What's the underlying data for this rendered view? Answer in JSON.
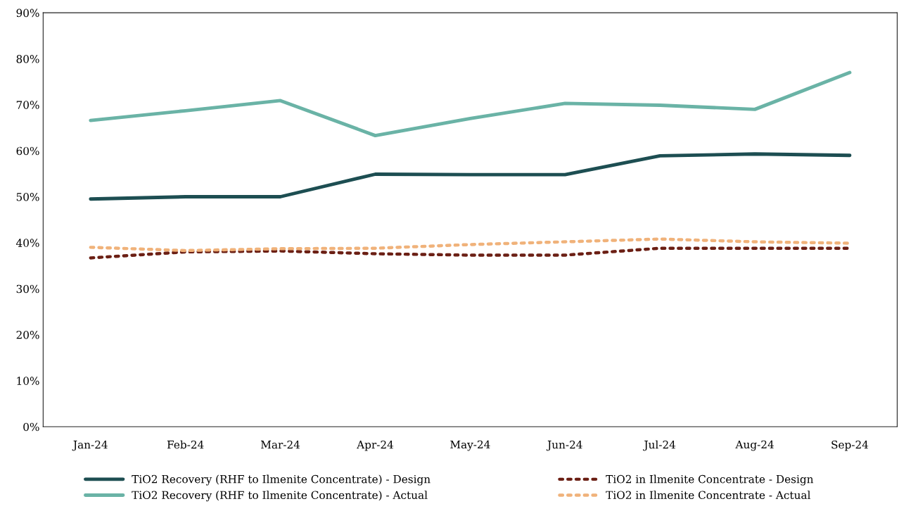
{
  "chart_data": {
    "type": "line",
    "categories": [
      "Jan-24",
      "Feb-24",
      "Mar-24",
      "Apr-24",
      "May-24",
      "Jun-24",
      "Jul-24",
      "Aug-24",
      "Sep-24"
    ],
    "series": [
      {
        "name": "TiO2 Recovery (RHF to Ilmenite Concentrate) - Design",
        "color": "#1d4e52",
        "line_style": "solid",
        "values": [
          49.5,
          50.0,
          50.0,
          54.9,
          54.8,
          54.8,
          58.9,
          59.3,
          59.0
        ]
      },
      {
        "name": "TiO2 Recovery (RHF to Ilmenite Concentrate) - Actual",
        "color": "#6ab3a6",
        "line_style": "solid",
        "values": [
          66.6,
          68.7,
          70.9,
          63.3,
          67.0,
          70.3,
          69.9,
          69.0,
          77.0
        ]
      },
      {
        "name": "TiO2 in Ilmenite Concentrate - Design",
        "color": "#6b1f14",
        "line_style": "dotted",
        "values": [
          36.7,
          38.0,
          38.2,
          37.6,
          37.3,
          37.3,
          38.8,
          38.8,
          38.8
        ]
      },
      {
        "name": "TiO2 in Ilmenite Concentrate - Actual",
        "color": "#f0b27a",
        "line_style": "dotted",
        "values": [
          39.0,
          38.3,
          38.7,
          38.8,
          39.6,
          40.2,
          40.8,
          40.2,
          39.9
        ]
      }
    ],
    "ylim": [
      0,
      90
    ],
    "yticks": [
      {
        "value": 0,
        "label": "0%"
      },
      {
        "value": 10,
        "label": "10%"
      },
      {
        "value": 20,
        "label": "20%"
      },
      {
        "value": 30,
        "label": "30%"
      },
      {
        "value": 40,
        "label": "40%"
      },
      {
        "value": 50,
        "label": "50%"
      },
      {
        "value": 60,
        "label": "60%"
      },
      {
        "value": 70,
        "label": "70%"
      },
      {
        "value": 80,
        "label": "80%"
      },
      {
        "value": 90,
        "label": "90%"
      }
    ],
    "grid": false,
    "legend": "bottom",
    "marker": "none"
  }
}
